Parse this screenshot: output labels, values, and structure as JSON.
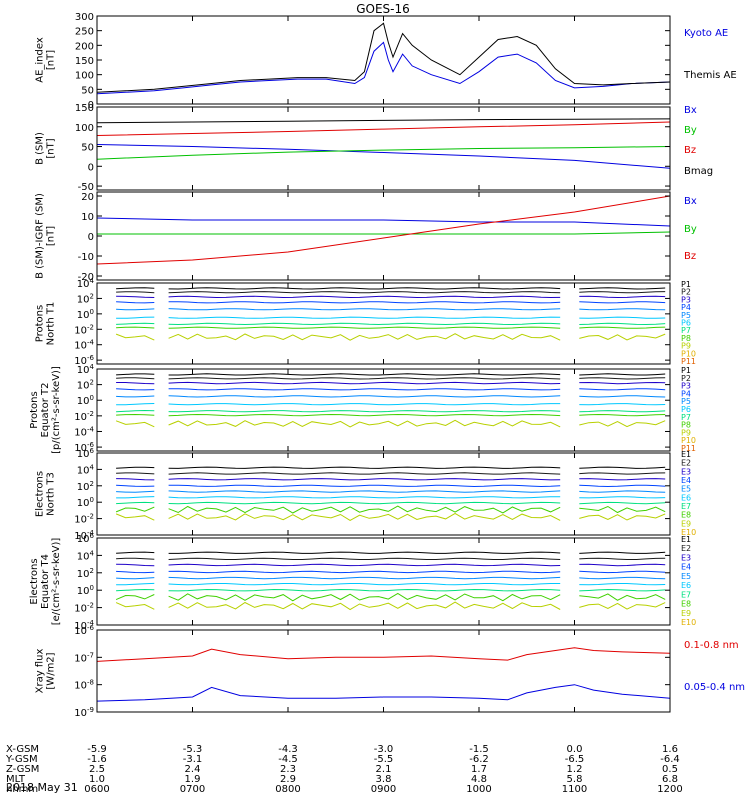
{
  "title": "GOES-16",
  "date_label": "2018 May 31",
  "colors": {
    "blue": "#0000e0",
    "black": "#000000",
    "red": "#e00000",
    "green": "#00c000",
    "p": [
      "#000000",
      "#1a1a1a",
      "#1e00c8",
      "#0044ff",
      "#0088ff",
      "#00c8ff",
      "#00e080",
      "#40d000",
      "#b8d000",
      "#e0b000",
      "#e06000",
      "#d00000"
    ]
  },
  "time_axis": {
    "start_hour": 6,
    "end_hour": 12,
    "hhmm": [
      "0600",
      "0700",
      "0800",
      "0900",
      "1000",
      "1100",
      "1200"
    ],
    "rows": [
      {
        "label": "X-GSM",
        "values": [
          "-5.9",
          "-5.3",
          "-4.3",
          "-3.0",
          "-1.5",
          "0.0",
          "1.6"
        ]
      },
      {
        "label": "Y-GSM",
        "values": [
          "-1.6",
          "-3.1",
          "-4.5",
          "-5.5",
          "-6.2",
          "-6.5",
          "-6.4"
        ]
      },
      {
        "label": "Z-GSM",
        "values": [
          "2.5",
          "2.4",
          "2.3",
          "2.1",
          "1.7",
          "1.2",
          "0.5"
        ]
      },
      {
        "label": "MLT",
        "values": [
          "1.0",
          "1.9",
          "2.9",
          "3.8",
          "4.8",
          "5.8",
          "6.8"
        ]
      },
      {
        "label": "hhmm",
        "values": [
          "0600",
          "0700",
          "0800",
          "0900",
          "1000",
          "1100",
          "1200"
        ]
      }
    ]
  },
  "chart_data": [
    {
      "type": "line",
      "id": "ae",
      "ylabel": [
        "AE_index",
        "[nT]"
      ],
      "ylim": [
        0,
        300
      ],
      "yticks": [
        "0",
        "50",
        "100",
        "150",
        "200",
        "250",
        "300"
      ],
      "series": [
        {
          "name": "Kyoto AE",
          "color": "blue",
          "x": [
            6.0,
            6.3,
            6.6,
            6.9,
            7.2,
            7.5,
            7.8,
            8.1,
            8.4,
            8.7,
            8.8,
            8.9,
            9.0,
            9.05,
            9.1,
            9.2,
            9.3,
            9.5,
            9.8,
            10.0,
            10.2,
            10.4,
            10.6,
            10.8,
            11.0,
            11.3,
            11.6,
            12.0
          ],
          "y": [
            35,
            40,
            45,
            55,
            65,
            75,
            80,
            85,
            85,
            70,
            90,
            180,
            210,
            150,
            110,
            170,
            130,
            100,
            70,
            110,
            160,
            170,
            140,
            80,
            55,
            60,
            70,
            75
          ]
        },
        {
          "name": "Themis AE",
          "color": "black",
          "x": [
            6.0,
            6.3,
            6.6,
            6.9,
            7.2,
            7.5,
            7.8,
            8.1,
            8.4,
            8.7,
            8.8,
            8.9,
            9.0,
            9.05,
            9.1,
            9.2,
            9.3,
            9.5,
            9.8,
            10.0,
            10.2,
            10.4,
            10.6,
            10.8,
            11.0,
            11.3,
            11.6,
            12.0
          ],
          "y": [
            40,
            45,
            50,
            60,
            70,
            80,
            85,
            90,
            90,
            80,
            110,
            250,
            275,
            210,
            160,
            240,
            200,
            150,
            100,
            160,
            220,
            230,
            200,
            120,
            70,
            65,
            70,
            75
          ]
        }
      ]
    },
    {
      "type": "line",
      "id": "bsm",
      "ylabel": [
        "B (SM)",
        "[nT]"
      ],
      "ylim": [
        -60,
        150
      ],
      "yticks": [
        "-50",
        "0",
        "50",
        "100",
        "150"
      ],
      "series": [
        {
          "name": "Bx",
          "color": "blue",
          "x": [
            6,
            7,
            8,
            9,
            10,
            11,
            12
          ],
          "y": [
            55,
            50,
            43,
            35,
            26,
            15,
            -5
          ]
        },
        {
          "name": "By",
          "color": "green",
          "x": [
            6,
            7,
            8,
            9,
            10,
            11,
            12
          ],
          "y": [
            18,
            28,
            36,
            41,
            45,
            47,
            50
          ]
        },
        {
          "name": "Bz",
          "color": "red",
          "x": [
            6,
            7,
            8,
            9,
            10,
            11,
            12
          ],
          "y": [
            78,
            83,
            88,
            94,
            100,
            105,
            112
          ]
        },
        {
          "name": "Bmag",
          "color": "black",
          "x": [
            6,
            7,
            8,
            9,
            10,
            11,
            12
          ],
          "y": [
            110,
            112,
            114,
            116,
            118,
            119,
            120
          ]
        }
      ]
    },
    {
      "type": "line",
      "id": "bdiff",
      "ylabel": [
        "B (SM)-IGRF (SM)",
        "[nT]"
      ],
      "ylim": [
        -22,
        22
      ],
      "yticks": [
        "-20",
        "-10",
        "0",
        "10",
        "20"
      ],
      "series": [
        {
          "name": "Bx",
          "color": "blue",
          "x": [
            6,
            7,
            8,
            9,
            10,
            11,
            12
          ],
          "y": [
            9,
            8,
            8,
            8,
            7,
            7,
            5
          ]
        },
        {
          "name": "By",
          "color": "green",
          "x": [
            6,
            7,
            8,
            9,
            10,
            11,
            12
          ],
          "y": [
            1,
            1,
            1,
            1,
            1,
            1,
            2
          ]
        },
        {
          "name": "Bz",
          "color": "red",
          "x": [
            6,
            7,
            8,
            9,
            10,
            11,
            12
          ],
          "y": [
            -14,
            -12,
            -8,
            -1,
            6,
            12,
            20
          ]
        }
      ]
    },
    {
      "type": "line",
      "id": "pnorth",
      "yscale": "log",
      "ylabel": [
        "Protons",
        "North T1"
      ],
      "ylim": [
        -6.5,
        4
      ],
      "yticks": [
        "10^4",
        "10^2",
        "10^0",
        "10^-2",
        "10^-4",
        "10^-6"
      ],
      "gaps": [
        [
          6.6,
          6.75
        ],
        [
          10.9,
          11.05
        ]
      ],
      "channels": [
        "P1",
        "P2",
        "P3",
        "P4",
        "P5",
        "P6",
        "P7",
        "P8",
        "P9",
        "P10",
        "P11"
      ],
      "levels": [
        3.3,
        2.8,
        2.2,
        1.5,
        0.6,
        -0.5,
        -1.3,
        -1.8,
        -3.0,
        99,
        99
      ]
    },
    {
      "type": "line",
      "id": "pequator",
      "yscale": "log",
      "ylabel": [
        "Protons",
        "Equator T2",
        "[p/(cm²-s-sr-keV)]"
      ],
      "ylim": [
        -6.5,
        4
      ],
      "yticks": [
        "10^4",
        "10^2",
        "10^0",
        "10^-2",
        "10^-4",
        "10^-6"
      ],
      "gaps": [
        [
          6.6,
          6.75
        ],
        [
          10.9,
          11.05
        ]
      ],
      "channels": [
        "P1",
        "P2",
        "P3",
        "P4",
        "P5",
        "P6",
        "P7",
        "P8",
        "P9",
        "P10",
        "P11"
      ],
      "levels": [
        3.3,
        2.8,
        2.2,
        1.4,
        0.5,
        -0.5,
        -1.4,
        -1.9,
        -3.0,
        99,
        99
      ]
    },
    {
      "type": "line",
      "id": "enorth",
      "yscale": "log",
      "ylabel": [
        "Electrons",
        "North T3"
      ],
      "ylim": [
        -4,
        6
      ],
      "yticks": [
        "10^6",
        "10^4",
        "10^2",
        "10^0",
        "10^-2",
        "10^-4"
      ],
      "gaps": [
        [
          6.6,
          6.75
        ],
        [
          10.9,
          11.05
        ]
      ],
      "channels": [
        "E1",
        "E2",
        "E3",
        "E4",
        "E5",
        "E6",
        "E7",
        "E8",
        "E9",
        "E10"
      ],
      "levels": [
        4.2,
        3.5,
        2.8,
        2.0,
        1.3,
        0.6,
        -0.1,
        -0.9,
        -1.8,
        99
      ]
    },
    {
      "type": "line",
      "id": "eequator",
      "yscale": "log",
      "ylabel": [
        "Electrons",
        "Equator T4",
        "[e/(cm²-s-sr-keV)]"
      ],
      "ylim": [
        -4,
        6
      ],
      "yticks": [
        "10^6",
        "10^4",
        "10^2",
        "10^0",
        "10^-2",
        "10^-4"
      ],
      "gaps": [
        [
          6.6,
          6.75
        ],
        [
          10.9,
          11.05
        ]
      ],
      "channels": [
        "E1",
        "E2",
        "E3",
        "E4",
        "E5",
        "E6",
        "E7",
        "E8",
        "E9",
        "E10"
      ],
      "levels": [
        4.3,
        3.6,
        2.9,
        2.1,
        1.4,
        0.7,
        0.0,
        -0.8,
        -1.8,
        99
      ]
    },
    {
      "type": "line",
      "id": "xray",
      "yscale": "log",
      "ylabel": [
        "Xray flux",
        "[W/m2]"
      ],
      "ylim": [
        -9,
        -6
      ],
      "yticks": [
        "10^-6",
        "10^-7",
        "10^-8",
        "10^-9"
      ],
      "series": [
        {
          "name": "0.1-0.8 nm",
          "color": "red",
          "x": [
            6.0,
            6.5,
            7.0,
            7.2,
            7.5,
            8.0,
            8.5,
            9.0,
            9.5,
            10.0,
            10.3,
            10.5,
            10.8,
            11.0,
            11.2,
            11.5,
            12.0
          ],
          "y": [
            -7.15,
            -7.05,
            -6.95,
            -6.7,
            -6.9,
            -7.05,
            -7.0,
            -7.0,
            -6.95,
            -7.05,
            -7.1,
            -6.9,
            -6.75,
            -6.65,
            -6.75,
            -6.8,
            -6.85
          ]
        },
        {
          "name": "0.05-0.4 nm",
          "color": "blue",
          "x": [
            6.0,
            6.5,
            7.0,
            7.2,
            7.5,
            8.0,
            8.5,
            9.0,
            9.5,
            10.0,
            10.3,
            10.5,
            10.8,
            11.0,
            11.2,
            11.5,
            12.0
          ],
          "y": [
            -8.6,
            -8.55,
            -8.45,
            -8.1,
            -8.4,
            -8.5,
            -8.5,
            -8.45,
            -8.45,
            -8.5,
            -8.55,
            -8.3,
            -8.1,
            -8.0,
            -8.2,
            -8.35,
            -8.5
          ]
        }
      ]
    }
  ]
}
